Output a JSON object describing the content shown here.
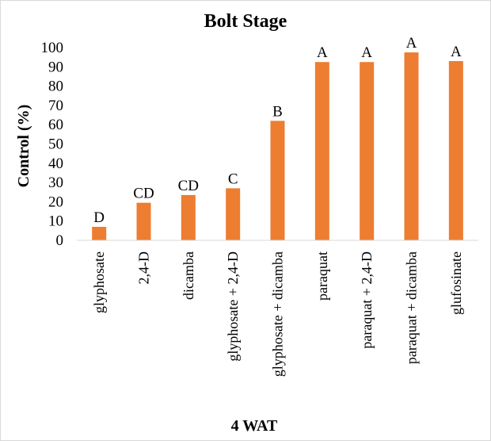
{
  "chart_data": {
    "type": "bar",
    "title": "Bolt Stage",
    "xlabel": "4 WAT",
    "ylabel": "Control (%)",
    "ylim": [
      0,
      100
    ],
    "yticks": [
      0,
      10,
      20,
      30,
      40,
      50,
      60,
      70,
      80,
      90,
      100
    ],
    "grid": false,
    "bar_color": "#ED7D31",
    "categories": [
      "glyphosate",
      "2,4-D",
      "dicamba",
      "glyphosate + 2,4-D",
      "glyphosate + dicamba",
      "paraquat",
      "paraquat + 2,4-D",
      "paraquat + dicamba",
      "glufosinate"
    ],
    "values": [
      7,
      19.5,
      23.5,
      27,
      62,
      92.5,
      92.5,
      97.5,
      93
    ],
    "letters": [
      "D",
      "CD",
      "CD",
      "C",
      "B",
      "A",
      "A",
      "A",
      "A"
    ]
  }
}
